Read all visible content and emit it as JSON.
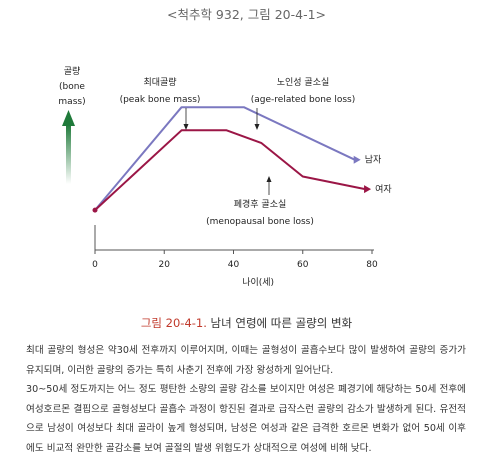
{
  "header": {
    "source_caption": "<척추학 932, 그림 20-4-1>"
  },
  "chart_data": {
    "type": "line",
    "ylabel": [
      "골량",
      "(bone",
      "mass)"
    ],
    "xlabel": "나이(세)",
    "x_ticks": [
      0,
      20,
      40,
      60,
      80
    ],
    "xlim": [
      0,
      80
    ],
    "ylim": [
      0,
      1
    ],
    "series": [
      {
        "name": "남자",
        "color": "#7b78c0",
        "x": [
          0,
          25,
          43,
          75
        ],
        "y": [
          0.19,
          0.68,
          0.68,
          0.43
        ]
      },
      {
        "name": "여자",
        "color": "#9b1646",
        "x": [
          0,
          25,
          38,
          48,
          60,
          78
        ],
        "y": [
          0.19,
          0.57,
          0.57,
          0.51,
          0.35,
          0.29
        ]
      }
    ],
    "annotations": [
      {
        "line1": "최대골량",
        "line2": "(peak bone mass)"
      },
      {
        "line1": "노인성 골소실",
        "line2": "(age-related bone loss)"
      },
      {
        "line1": "폐경후 골소실",
        "line2": "(menopausal bone loss)"
      }
    ],
    "axis_arrow_color": "#1f7a3a"
  },
  "figure_caption": {
    "number": "그림 20-4-1.",
    "title": " 남녀 연령에 따른 골량의 변화"
  },
  "body": {
    "paragraph1": "최대 골량의 형성은 약30세 전후까지 이루어지며, 이때는 골형성이 골흡수보다 많이 발생하여 골량의 증가가 유지되며, 이러한 골량의 증가는 특히 사춘기 전후에 가장 왕성하게 일어난다.",
    "paragraph2": "30~50세 정도까지는 어느 정도 평탄한 소량의 골량 감소를 보이지만 여성은 폐경기에 해당하는 50세 전후에 여성호르몬 결핍으로 골형성보다 골흡수 과정이 항진된 결과로 급작스런 골량의 감소가 발생하게 된다. 유전적으로 남성이 여성보다 최대 골라이 높게 형성되며, 남성은 여성과 같은 급격한 호르몬 변화가 없어 50세 이후에도 비교적 완만한 골감소를 보여 골절의 발생 위험도가 상대적으로 여성에 비해 낮다."
  }
}
